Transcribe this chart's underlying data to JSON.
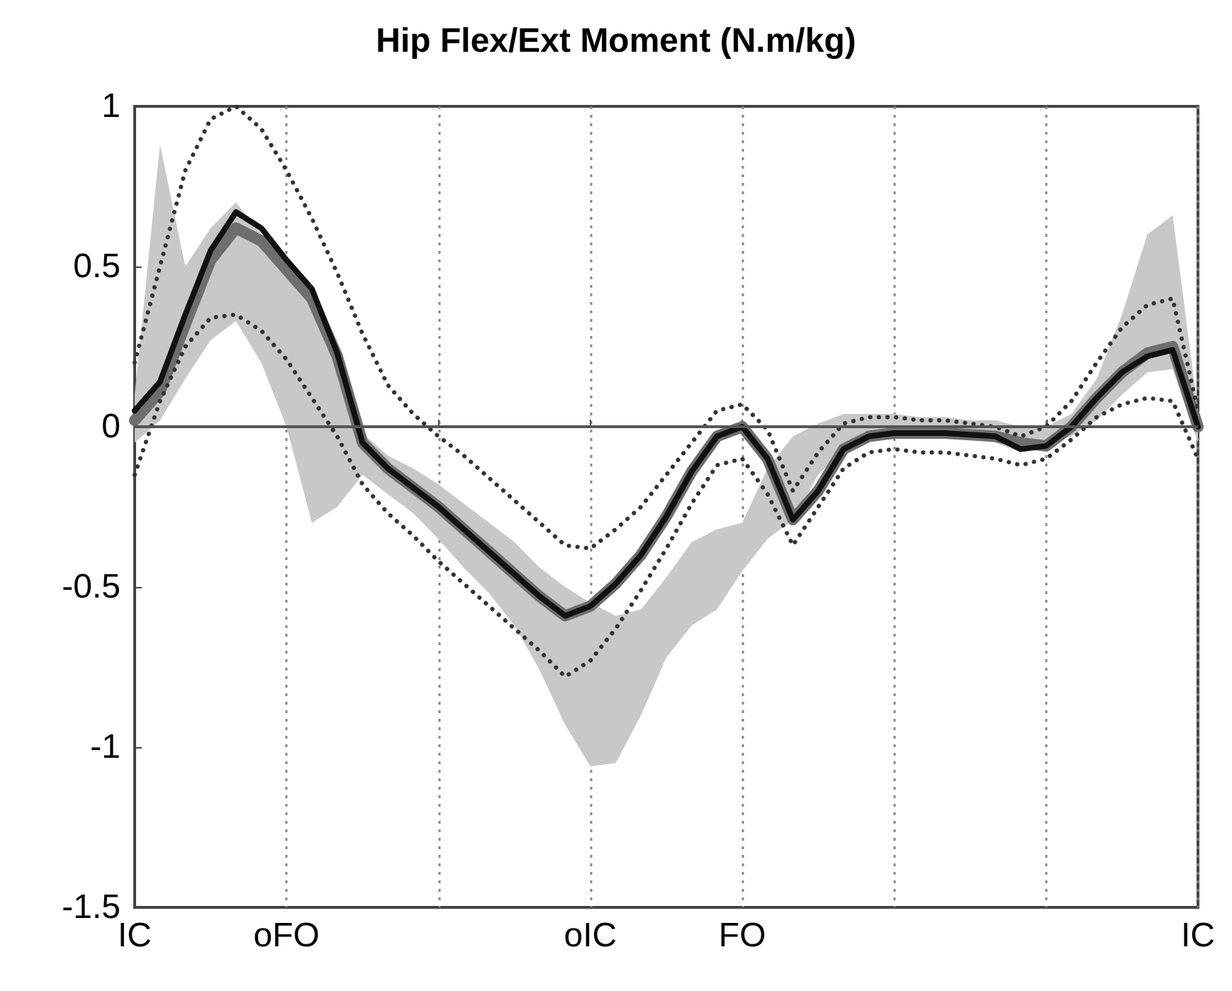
{
  "chart_data": {
    "type": "line",
    "title": "Hip Flex/Ext Moment (N.m/kg)",
    "categories": [
      "IC",
      null,
      null,
      null,
      null,
      null,
      "oFO",
      null,
      null,
      null,
      null,
      null,
      null,
      null,
      null,
      null,
      null,
      null,
      "oIC",
      null,
      null,
      null,
      null,
      null,
      "FO",
      null,
      null,
      null,
      null,
      null,
      null,
      null,
      null,
      null,
      null,
      null,
      null,
      null,
      null,
      null,
      null,
      null,
      "IC"
    ],
    "ylim": [
      -1.5,
      1
    ],
    "yticks": [
      -1.5,
      -1,
      -0.5,
      0,
      0.5,
      1
    ],
    "grid": "x",
    "marker": "none",
    "ref_lines": [
      {
        "axis": "y",
        "value": 0,
        "color": "#555555"
      }
    ],
    "series": [
      {
        "color": "#6e6e6e",
        "line_style": "solid",
        "values": [
          0.02,
          0.11,
          0.32,
          0.52,
          0.62,
          0.58,
          0.49,
          0.4,
          0.22,
          -0.05,
          -0.13,
          -0.19,
          -0.25,
          -0.32,
          -0.39,
          -0.46,
          -0.53,
          -0.59,
          -0.56,
          -0.49,
          -0.4,
          -0.28,
          -0.14,
          -0.03,
          0.0,
          -0.1,
          -0.29,
          -0.2,
          -0.07,
          -0.03,
          -0.02,
          -0.02,
          -0.02,
          -0.025,
          -0.03,
          -0.05,
          -0.06,
          0.0,
          0.09,
          0.17,
          0.23,
          0.25,
          0.0
        ],
        "lower": [
          -0.05,
          0.02,
          0.15,
          0.27,
          0.33,
          0.2,
          0.0,
          -0.3,
          -0.25,
          -0.15,
          -0.21,
          -0.27,
          -0.35,
          -0.44,
          -0.52,
          -0.62,
          -0.76,
          -0.93,
          -1.06,
          -1.05,
          -0.9,
          -0.72,
          -0.62,
          -0.57,
          -0.45,
          -0.35,
          -0.29,
          -0.15,
          -0.07,
          -0.03,
          -0.03,
          -0.03,
          -0.03,
          -0.04,
          -0.05,
          -0.08,
          -0.05,
          -0.03,
          0.02,
          0.1,
          0.17,
          0.18,
          -0.05
        ],
        "upper": [
          0.1,
          0.88,
          0.5,
          0.62,
          0.7,
          0.6,
          0.5,
          0.37,
          0.2,
          -0.02,
          -0.09,
          -0.13,
          -0.18,
          -0.24,
          -0.3,
          -0.36,
          -0.44,
          -0.5,
          -0.55,
          -0.59,
          -0.57,
          -0.47,
          -0.36,
          -0.32,
          -0.3,
          -0.13,
          -0.03,
          0.01,
          0.04,
          0.04,
          0.04,
          0.03,
          0.03,
          0.02,
          0.02,
          0.0,
          0.0,
          0.04,
          0.15,
          0.35,
          0.6,
          0.66,
          0.05
        ]
      },
      {
        "color": "#111111",
        "line_style": "solid",
        "values": [
          0.05,
          0.14,
          0.35,
          0.55,
          0.67,
          0.62,
          0.52,
          0.43,
          0.23,
          -0.05,
          -0.13,
          -0.19,
          -0.25,
          -0.32,
          -0.39,
          -0.46,
          -0.53,
          -0.59,
          -0.56,
          -0.49,
          -0.4,
          -0.28,
          -0.14,
          -0.03,
          0.0,
          -0.1,
          -0.29,
          -0.2,
          -0.07,
          -0.03,
          -0.02,
          -0.02,
          -0.02,
          -0.025,
          -0.03,
          -0.07,
          -0.06,
          0.0,
          0.09,
          0.17,
          0.22,
          0.24,
          0.0
        ]
      },
      {
        "color": "#333333",
        "line_style": "dotted",
        "values": [
          0.2,
          0.5,
          0.8,
          0.96,
          1.0,
          0.93,
          0.8,
          0.65,
          0.48,
          0.29,
          0.13,
          0.04,
          -0.03,
          -0.09,
          -0.16,
          -0.23,
          -0.3,
          -0.37,
          -0.38,
          -0.32,
          -0.25,
          -0.15,
          -0.05,
          0.05,
          0.07,
          -0.01,
          -0.2,
          -0.08,
          0.01,
          0.03,
          0.03,
          0.02,
          0.02,
          0.01,
          0.0,
          -0.03,
          0.0,
          0.08,
          0.2,
          0.31,
          0.38,
          0.4,
          0.05
        ]
      },
      {
        "color": "#333333",
        "line_style": "dotted",
        "values": [
          -0.15,
          0.08,
          0.25,
          0.34,
          0.35,
          0.3,
          0.21,
          0.09,
          -0.03,
          -0.18,
          -0.27,
          -0.34,
          -0.42,
          -0.49,
          -0.56,
          -0.63,
          -0.7,
          -0.78,
          -0.73,
          -0.63,
          -0.51,
          -0.38,
          -0.24,
          -0.12,
          -0.1,
          -0.21,
          -0.37,
          -0.25,
          -0.13,
          -0.08,
          -0.07,
          -0.08,
          -0.08,
          -0.09,
          -0.1,
          -0.12,
          -0.1,
          -0.04,
          0.03,
          0.07,
          0.09,
          0.08,
          -0.1
        ]
      }
    ]
  }
}
